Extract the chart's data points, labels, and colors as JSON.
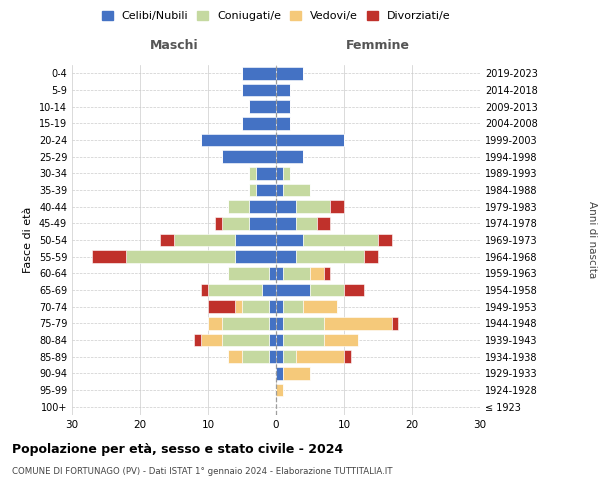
{
  "age_groups": [
    "100+",
    "95-99",
    "90-94",
    "85-89",
    "80-84",
    "75-79",
    "70-74",
    "65-69",
    "60-64",
    "55-59",
    "50-54",
    "45-49",
    "40-44",
    "35-39",
    "30-34",
    "25-29",
    "20-24",
    "15-19",
    "10-14",
    "5-9",
    "0-4"
  ],
  "birth_years": [
    "≤ 1923",
    "1924-1928",
    "1929-1933",
    "1934-1938",
    "1939-1943",
    "1944-1948",
    "1949-1953",
    "1954-1958",
    "1959-1963",
    "1964-1968",
    "1969-1973",
    "1974-1978",
    "1979-1983",
    "1984-1988",
    "1989-1993",
    "1994-1998",
    "1999-2003",
    "2004-2008",
    "2009-2013",
    "2014-2018",
    "2019-2023"
  ],
  "male": {
    "celibi": [
      0,
      0,
      0,
      1,
      1,
      1,
      1,
      2,
      1,
      6,
      6,
      4,
      4,
      3,
      3,
      8,
      11,
      5,
      4,
      5,
      5
    ],
    "coniugati": [
      0,
      0,
      0,
      4,
      7,
      7,
      4,
      8,
      6,
      16,
      9,
      4,
      3,
      1,
      1,
      0,
      0,
      0,
      0,
      0,
      0
    ],
    "vedovi": [
      0,
      0,
      0,
      2,
      3,
      2,
      1,
      0,
      0,
      0,
      0,
      0,
      0,
      0,
      0,
      0,
      0,
      0,
      0,
      0,
      0
    ],
    "divorziati": [
      0,
      0,
      0,
      0,
      1,
      0,
      4,
      1,
      0,
      5,
      2,
      1,
      0,
      0,
      0,
      0,
      0,
      0,
      0,
      0,
      0
    ]
  },
  "female": {
    "nubili": [
      0,
      0,
      1,
      1,
      1,
      1,
      1,
      5,
      1,
      3,
      4,
      3,
      3,
      1,
      1,
      4,
      10,
      2,
      2,
      2,
      4
    ],
    "coniugate": [
      0,
      0,
      0,
      2,
      6,
      6,
      3,
      5,
      4,
      10,
      11,
      3,
      5,
      4,
      1,
      0,
      0,
      0,
      0,
      0,
      0
    ],
    "vedove": [
      0,
      1,
      4,
      7,
      5,
      10,
      5,
      0,
      2,
      0,
      0,
      0,
      0,
      0,
      0,
      0,
      0,
      0,
      0,
      0,
      0
    ],
    "divorziate": [
      0,
      0,
      0,
      1,
      0,
      1,
      0,
      3,
      1,
      2,
      2,
      2,
      2,
      0,
      0,
      0,
      0,
      0,
      0,
      0,
      0
    ]
  },
  "colors": {
    "celibi_nubili": "#4472C4",
    "coniugati_e": "#C5D9A0",
    "vedovi_e": "#F5C97A",
    "divorziati_e": "#C0312B"
  },
  "title": "Popolazione per età, sesso e stato civile - 2024",
  "subtitle": "COMUNE DI FORTUNAGO (PV) - Dati ISTAT 1° gennaio 2024 - Elaborazione TUTTITALIA.IT",
  "xlabel_left": "Maschi",
  "xlabel_right": "Femmine",
  "ylabel_left": "Fasce di età",
  "ylabel_right": "Anni di nascita",
  "xlim": 30,
  "legend_labels": [
    "Celibi/Nubili",
    "Coniugati/e",
    "Vedovi/e",
    "Divorziati/e"
  ]
}
